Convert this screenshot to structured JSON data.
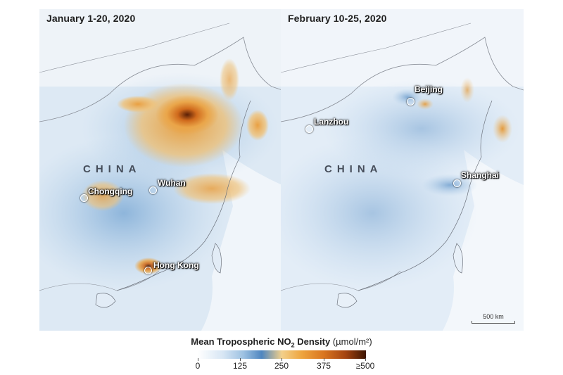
{
  "panels": [
    {
      "title": "January 1-20, 2020",
      "country_label": "CHINA",
      "cities": [
        {
          "name": "Chongqing"
        },
        {
          "name": "Wuhan"
        },
        {
          "name": "Hong Kong"
        }
      ]
    },
    {
      "title": "February 10-25, 2020",
      "country_label": "CHINA",
      "cities": [
        {
          "name": "Beijing"
        },
        {
          "name": "Lanzhou"
        },
        {
          "name": "Shanghai"
        }
      ],
      "scale_bar": "500 km"
    }
  ],
  "legend": {
    "title_main": "Mean Tropospheric NO",
    "title_sub": "2",
    "title_rest": " Density",
    "units": "(µmol/m²)",
    "ticks": [
      "0",
      "125",
      "250",
      "375",
      "≥500"
    ],
    "colors": [
      "#ffffff",
      "#9ec2e2",
      "#4f86c0",
      "#f3d08a",
      "#eea43e",
      "#d9751f",
      "#a44310",
      "#3d1503"
    ]
  }
}
